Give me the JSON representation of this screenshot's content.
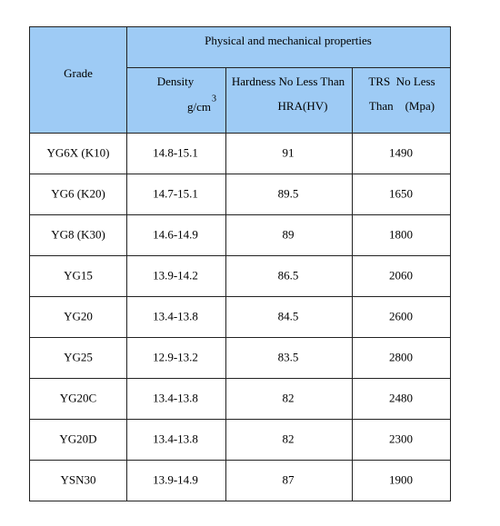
{
  "table": {
    "header": {
      "grade": "Grade",
      "group": "Physical and mechanical properties",
      "density": "Density",
      "density_unit": "g/cm",
      "density_unit_exp": "3",
      "hardness": [
        "Hardness No Less Than",
        "HRA(HV)"
      ],
      "trs": [
        "TRS  No Less",
        "Than    (Mpa)"
      ]
    },
    "rows": [
      [
        "YG6X (K10)",
        "14.8-15.1",
        "91",
        "1490"
      ],
      [
        "YG6 (K20)",
        "14.7-15.1",
        "89.5",
        "1650"
      ],
      [
        "YG8 (K30)",
        "14.6-14.9",
        "89",
        "1800"
      ],
      [
        "YG15",
        "13.9-14.2",
        "86.5",
        "2060"
      ],
      [
        "YG20",
        "13.4-13.8",
        "84.5",
        "2600"
      ],
      [
        "YG25",
        "12.9-13.2",
        "83.5",
        "2800"
      ],
      [
        "YG20C",
        "13.4-13.8",
        "82",
        "2480"
      ],
      [
        "YG20D",
        "13.4-13.8",
        "82",
        "2300"
      ],
      [
        "YSN30",
        "13.9-14.9",
        "87",
        "1900"
      ]
    ]
  }
}
